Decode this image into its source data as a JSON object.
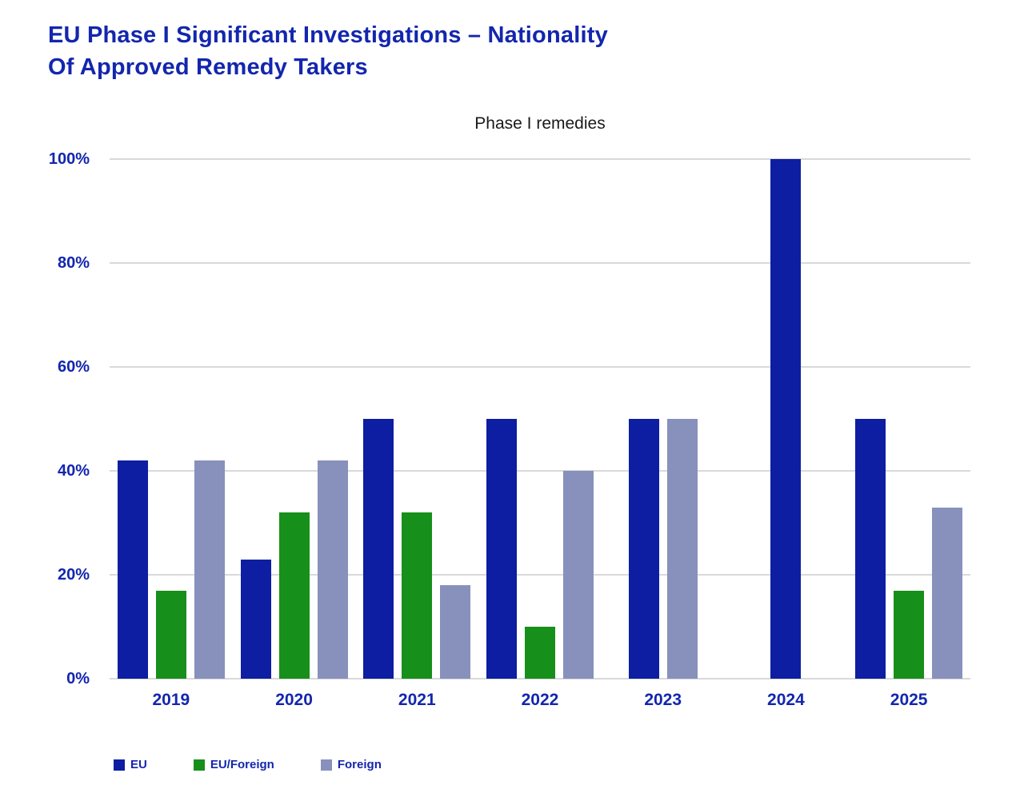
{
  "page": {
    "title": "EU Phase I Significant Investigations – Nationality Of Approved Remedy Takers"
  },
  "chart_data": {
    "type": "bar",
    "title": "Phase I remedies",
    "categories": [
      "2019",
      "2020",
      "2021",
      "2022",
      "2023",
      "2024",
      "2025"
    ],
    "series": [
      {
        "name": "EU",
        "color": "#0D1EA2",
        "values": [
          42,
          23,
          50,
          50,
          50,
          100,
          50
        ]
      },
      {
        "name": "EU/Foreign",
        "color": "#178F1B",
        "values": [
          17,
          32,
          32,
          10,
          null,
          null,
          17
        ]
      },
      {
        "name": "Foreign",
        "color": "#8890BC",
        "values": [
          42,
          42,
          18,
          40,
          50,
          null,
          33
        ]
      }
    ],
    "xlabel": "",
    "ylabel": "",
    "ylim": [
      0,
      100
    ],
    "y_ticks": [
      "0%",
      "20%",
      "40%",
      "60%",
      "80%",
      "100%"
    ],
    "y_tick_values": [
      0,
      20,
      40,
      60,
      80,
      100
    ],
    "grid": true,
    "legend_position": "bottom-left"
  },
  "colors": {
    "title_text": "#1326AE",
    "axis_text": "#1326AE",
    "subtitle_text": "#1A1A1A",
    "gridline": "#D9D9D9",
    "background": "#FFFFFF"
  }
}
